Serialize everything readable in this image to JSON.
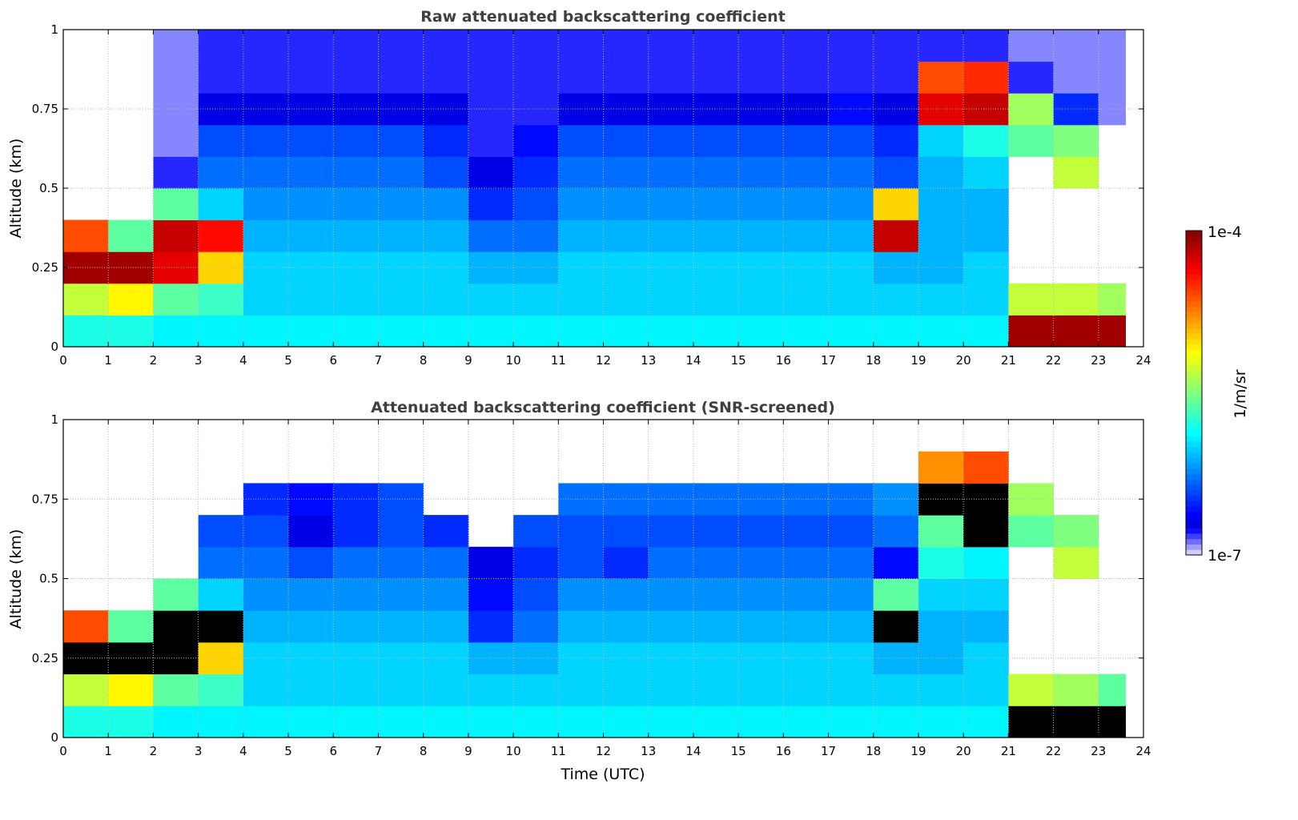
{
  "chart_data": [
    {
      "type": "heatmap",
      "title": "Raw attenuated backscattering coefficient",
      "xlabel": "",
      "ylabel": "Altitude (km)",
      "xlim": [
        0,
        24
      ],
      "ylim": [
        0,
        1
      ],
      "xticks": [
        "0",
        "1",
        "2",
        "3",
        "4",
        "5",
        "6",
        "7",
        "8",
        "9",
        "10",
        "11",
        "12",
        "13",
        "14",
        "15",
        "16",
        "17",
        "18",
        "19",
        "20",
        "21",
        "22",
        "23",
        "24"
      ],
      "yticks": [
        "0",
        "0.25",
        "0.5",
        "0.75",
        "1"
      ],
      "grid": true,
      "time_bins_start_h": [
        0,
        1,
        2,
        3,
        4,
        5,
        6,
        7,
        8,
        9,
        10,
        11,
        12,
        13,
        14,
        15,
        16,
        17,
        18,
        19,
        20,
        21,
        22,
        23
      ],
      "time_end_h": 23.6,
      "alt_bins_start_km": [
        0,
        0.1,
        0.2,
        0.3,
        0.4,
        0.5,
        0.6,
        0.7,
        0.8,
        0.9
      ],
      "log10_values_by_time": [
        [
          -5.8,
          -5.3,
          -4.1,
          -4.6,
          null,
          null,
          null,
          null,
          null,
          null
        ],
        [
          -5.8,
          -5.1,
          -4.1,
          -5.6,
          null,
          null,
          null,
          null,
          null,
          null
        ],
        [
          -5.9,
          -5.6,
          -4.3,
          -4.2,
          -5.6,
          -6.8,
          -6.9,
          -6.9,
          -6.9,
          -6.9
        ],
        [
          -5.9,
          -5.7,
          -5.0,
          -4.4,
          -6.0,
          -6.3,
          -6.4,
          -6.7,
          -6.8,
          -6.8
        ],
        [
          -5.9,
          -6.0,
          -6.0,
          -6.1,
          -6.2,
          -6.3,
          -6.4,
          -6.7,
          -6.8,
          -6.8
        ],
        [
          -5.9,
          -6.0,
          -6.0,
          -6.1,
          -6.2,
          -6.3,
          -6.4,
          -6.7,
          -6.8,
          -6.8
        ],
        [
          -5.9,
          -6.0,
          -6.0,
          -6.1,
          -6.2,
          -6.3,
          -6.4,
          -6.7,
          -6.8,
          -6.8
        ],
        [
          -5.9,
          -6.0,
          -6.0,
          -6.1,
          -6.2,
          -6.3,
          -6.4,
          -6.7,
          -6.8,
          -6.8
        ],
        [
          -5.9,
          -6.0,
          -6.0,
          -6.1,
          -6.2,
          -6.4,
          -6.5,
          -6.7,
          -6.8,
          -6.8
        ],
        [
          -5.9,
          -6.0,
          -6.1,
          -6.3,
          -6.5,
          -6.7,
          -6.8,
          -6.8,
          -6.8,
          -6.8
        ],
        [
          -5.9,
          -6.0,
          -6.1,
          -6.3,
          -6.4,
          -6.5,
          -6.6,
          -6.8,
          -6.8,
          -6.8
        ],
        [
          -5.9,
          -6.0,
          -6.0,
          -6.1,
          -6.2,
          -6.3,
          -6.4,
          -6.7,
          -6.8,
          -6.8
        ],
        [
          -5.9,
          -6.0,
          -6.0,
          -6.1,
          -6.2,
          -6.3,
          -6.4,
          -6.7,
          -6.8,
          -6.8
        ],
        [
          -5.9,
          -6.0,
          -6.0,
          -6.1,
          -6.2,
          -6.3,
          -6.4,
          -6.7,
          -6.8,
          -6.8
        ],
        [
          -5.9,
          -6.0,
          -6.0,
          -6.1,
          -6.2,
          -6.3,
          -6.4,
          -6.7,
          -6.8,
          -6.8
        ],
        [
          -5.9,
          -6.0,
          -6.0,
          -6.1,
          -6.2,
          -6.3,
          -6.4,
          -6.7,
          -6.8,
          -6.8
        ],
        [
          -5.9,
          -6.0,
          -6.0,
          -6.1,
          -6.2,
          -6.3,
          -6.4,
          -6.7,
          -6.8,
          -6.8
        ],
        [
          -5.9,
          -6.0,
          -6.0,
          -6.1,
          -6.2,
          -6.3,
          -6.4,
          -6.6,
          -6.8,
          -6.8
        ],
        [
          -5.9,
          -6.0,
          -6.1,
          -4.2,
          -5.0,
          -6.4,
          -6.5,
          -6.7,
          -6.8,
          -6.8
        ],
        [
          -5.9,
          -6.0,
          -6.1,
          -6.1,
          -6.1,
          -6.1,
          -6.0,
          -4.3,
          -4.6,
          -6.8
        ],
        [
          -5.9,
          -6.0,
          -6.0,
          -6.1,
          -6.1,
          -6.0,
          -5.8,
          -4.2,
          -4.5,
          -6.8
        ],
        [
          -4.1,
          -5.3,
          null,
          null,
          null,
          null,
          -5.6,
          -5.4,
          -6.8,
          -6.9
        ],
        [
          -4.1,
          -5.3,
          null,
          null,
          null,
          -5.3,
          -5.5,
          -6.5,
          -6.9,
          -6.9
        ],
        [
          -4.1,
          -5.4,
          null,
          null,
          null,
          null,
          null,
          -6.9,
          -6.9,
          -6.9
        ]
      ]
    },
    {
      "type": "heatmap",
      "title": "Attenuated backscattering coefficient (SNR-screened)",
      "xlabel": "Time (UTC)",
      "ylabel": "Altitude (km)",
      "xlim": [
        0,
        24
      ],
      "ylim": [
        0,
        1
      ],
      "xticks": [
        "0",
        "1",
        "2",
        "3",
        "4",
        "5",
        "6",
        "7",
        "8",
        "9",
        "10",
        "11",
        "12",
        "13",
        "14",
        "15",
        "16",
        "17",
        "18",
        "19",
        "20",
        "21",
        "22",
        "23",
        "24"
      ],
      "yticks": [
        "0",
        "0.25",
        "0.5",
        "0.75",
        "1"
      ],
      "grid": true,
      "saturated_color": "#000000",
      "time_bins_start_h": [
        0,
        1,
        2,
        3,
        4,
        5,
        6,
        7,
        8,
        9,
        10,
        11,
        12,
        13,
        14,
        15,
        16,
        17,
        18,
        19,
        20,
        21,
        22,
        23
      ],
      "time_end_h": 23.6,
      "alt_bins_start_km": [
        0,
        0.1,
        0.2,
        0.3,
        0.4,
        0.5,
        0.6,
        0.7,
        0.8,
        0.9
      ],
      "log10_values_by_time": [
        [
          -5.8,
          -5.3,
          "sat",
          -4.6,
          null,
          null,
          null,
          null,
          null,
          null
        ],
        [
          -5.8,
          -5.1,
          "sat",
          -5.6,
          null,
          null,
          null,
          null,
          null,
          null
        ],
        [
          -5.9,
          -5.6,
          "sat",
          "sat",
          -5.6,
          null,
          null,
          null,
          null,
          null
        ],
        [
          -5.9,
          -5.7,
          -5.0,
          "sat",
          -6.0,
          -6.3,
          -6.4,
          null,
          null,
          null
        ],
        [
          -5.9,
          -6.0,
          -6.0,
          -6.1,
          -6.2,
          -6.3,
          -6.4,
          -6.5,
          null,
          null
        ],
        [
          -5.9,
          -6.0,
          -6.0,
          -6.1,
          -6.2,
          -6.4,
          -6.7,
          -6.6,
          null,
          null
        ],
        [
          -5.9,
          -6.0,
          -6.0,
          -6.1,
          -6.2,
          -6.3,
          -6.5,
          -6.5,
          null,
          null
        ],
        [
          -5.9,
          -6.0,
          -6.0,
          -6.1,
          -6.2,
          -6.3,
          -6.4,
          -6.4,
          null,
          null
        ],
        [
          -5.9,
          -6.0,
          -6.0,
          -6.1,
          -6.2,
          -6.3,
          -6.5,
          null,
          null,
          null
        ],
        [
          -5.9,
          -6.0,
          -6.1,
          -6.5,
          -6.6,
          -6.7,
          null,
          null,
          null,
          null
        ],
        [
          -5.9,
          -6.0,
          -6.1,
          -6.3,
          -6.4,
          -6.5,
          -6.4,
          null,
          null,
          null
        ],
        [
          -5.9,
          -6.0,
          -6.0,
          -6.1,
          -6.2,
          -6.4,
          -6.4,
          -6.3,
          null,
          null
        ],
        [
          -5.9,
          -6.0,
          -6.0,
          -6.1,
          -6.2,
          -6.5,
          -6.4,
          -6.3,
          null,
          null
        ],
        [
          -5.9,
          -6.0,
          -6.0,
          -6.1,
          -6.2,
          -6.3,
          -6.4,
          -6.3,
          null,
          null
        ],
        [
          -5.9,
          -6.0,
          -6.0,
          -6.1,
          -6.2,
          -6.3,
          -6.4,
          -6.3,
          null,
          null
        ],
        [
          -5.9,
          -6.0,
          -6.0,
          -6.1,
          -6.2,
          -6.3,
          -6.4,
          -6.3,
          null,
          null
        ],
        [
          -5.9,
          -6.0,
          -6.0,
          -6.1,
          -6.2,
          -6.3,
          -6.4,
          -6.3,
          null,
          null
        ],
        [
          -5.9,
          -6.0,
          -6.0,
          -6.1,
          -6.2,
          -6.3,
          -6.4,
          -6.3,
          null,
          null
        ],
        [
          -5.9,
          -6.0,
          -6.1,
          "sat",
          -5.6,
          -6.6,
          -6.3,
          -6.2,
          null,
          null
        ],
        [
          -5.9,
          -6.0,
          -6.1,
          -6.1,
          -6.0,
          -5.8,
          -5.6,
          "sat",
          -4.8,
          null
        ],
        [
          -5.9,
          -6.0,
          -6.0,
          -6.1,
          -6.0,
          -5.9,
          "sat",
          "sat",
          -4.6,
          null
        ],
        [
          "sat",
          -5.3,
          null,
          null,
          null,
          null,
          -5.6,
          -5.4,
          null,
          null
        ],
        [
          "sat",
          -5.4,
          null,
          null,
          null,
          -5.3,
          -5.5,
          null,
          null,
          null
        ],
        [
          "sat",
          -5.6,
          null,
          null,
          null,
          null,
          null,
          null,
          null,
          null
        ]
      ]
    }
  ],
  "colorbar": {
    "label": "1/m/sr",
    "max_label": "1e-4",
    "min_label": "1e-7",
    "log10_range": [
      -7,
      -4
    ]
  }
}
